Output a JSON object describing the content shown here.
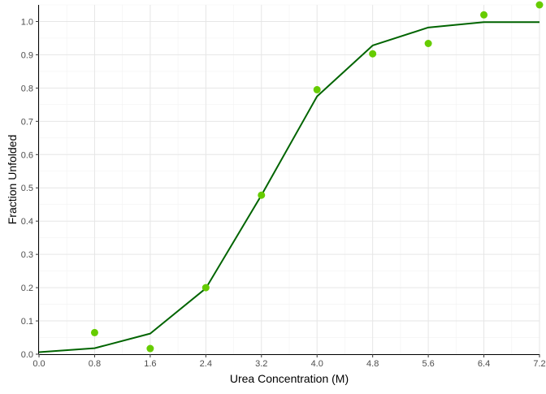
{
  "chart_data": {
    "type": "scatter",
    "title": "",
    "xlabel": "Urea Concentration (M)",
    "ylabel": "Fraction Unfolded",
    "xlim": [
      0,
      7.2
    ],
    "ylim": [
      0,
      1.05
    ],
    "x_ticks": [
      "0.0",
      "0.8",
      "1.6",
      "2.4",
      "3.2",
      "4.0",
      "4.8",
      "5.6",
      "6.4",
      "7.2"
    ],
    "y_ticks": [
      "0.0",
      "0.1",
      "0.2",
      "0.3",
      "0.4",
      "0.5",
      "0.6",
      "0.7",
      "0.8",
      "0.9",
      "1.0"
    ],
    "grid": true,
    "legend": "none",
    "series": [
      {
        "kind": "points",
        "color": "#66cc00",
        "x": [
          0.8,
          1.6,
          2.4,
          3.2,
          4.0,
          4.8,
          5.6,
          6.4,
          7.2
        ],
        "y": [
          0.065,
          0.017,
          0.2,
          0.478,
          0.795,
          0.903,
          0.934,
          1.02,
          1.05
        ]
      },
      {
        "kind": "line",
        "color": "#006400",
        "x": [
          0.0,
          0.8,
          1.6,
          2.4,
          3.2,
          4.0,
          4.8,
          5.6,
          6.4,
          7.2
        ],
        "y": [
          0.006,
          0.018,
          0.062,
          0.198,
          0.478,
          0.775,
          0.928,
          0.982,
          0.998,
          0.998
        ]
      }
    ]
  }
}
